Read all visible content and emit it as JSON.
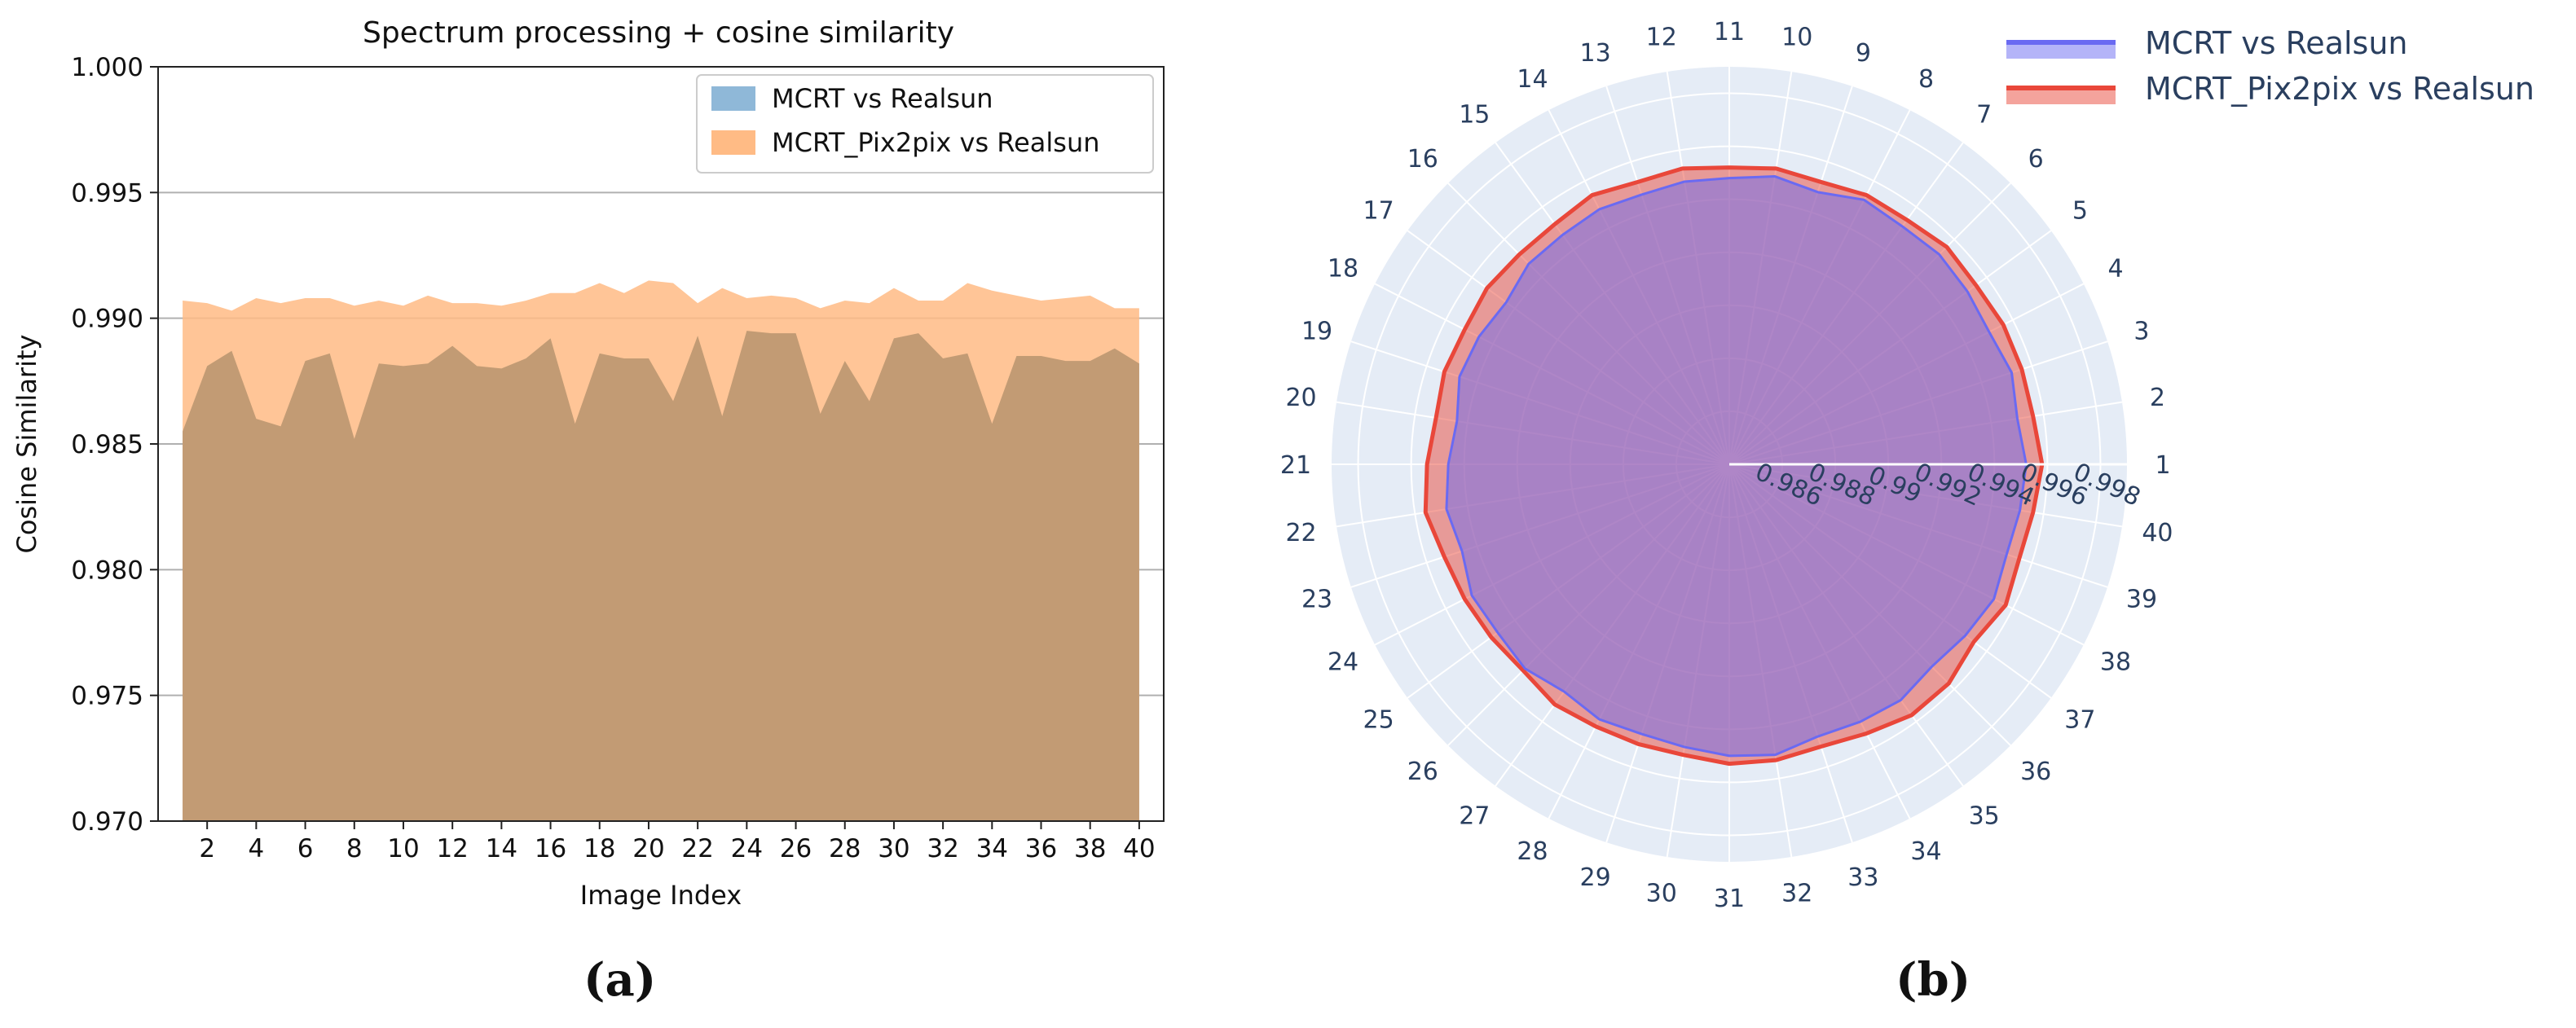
{
  "chart_data": [
    {
      "type": "area",
      "panel_label": "(a)",
      "title": "Spectrum processing + cosine similarity",
      "xlabel": "Image Index",
      "ylabel": "Cosine Similarity",
      "ylim": [
        0.97,
        1.0
      ],
      "xlim": [
        1,
        40
      ],
      "yticks": [
        "0.970",
        "0.975",
        "0.980",
        "0.985",
        "0.990",
        "0.995",
        "1.000"
      ],
      "xticks": [
        "2",
        "4",
        "6",
        "8",
        "10",
        "12",
        "14",
        "16",
        "18",
        "20",
        "22",
        "24",
        "26",
        "28",
        "30",
        "32",
        "34",
        "36",
        "38",
        "40"
      ],
      "grid": "horizontal",
      "legend_position": "top-right",
      "x": [
        1,
        2,
        3,
        4,
        5,
        6,
        7,
        8,
        9,
        10,
        11,
        12,
        13,
        14,
        15,
        16,
        17,
        18,
        19,
        20,
        21,
        22,
        23,
        24,
        25,
        26,
        27,
        28,
        29,
        30,
        31,
        32,
        33,
        34,
        35,
        36,
        37,
        38,
        39,
        40
      ],
      "series": [
        {
          "name": "MCRT vs Realsun",
          "color": "#8fb8d8",
          "values": [
            0.9855,
            0.9881,
            0.9887,
            0.986,
            0.9857,
            0.9883,
            0.9886,
            0.9852,
            0.9882,
            0.9881,
            0.9882,
            0.9889,
            0.9881,
            0.988,
            0.9884,
            0.9892,
            0.9858,
            0.9886,
            0.9884,
            0.9884,
            0.9867,
            0.9893,
            0.9861,
            0.9895,
            0.9894,
            0.9894,
            0.9862,
            0.9883,
            0.9867,
            0.9892,
            0.9894,
            0.9884,
            0.9886,
            0.9858,
            0.9885,
            0.9885,
            0.9883,
            0.9883,
            0.9888,
            0.9882
          ]
        },
        {
          "name": "MCRT_Pix2pix vs Realsun",
          "color": "#ffbb85",
          "values": [
            0.9907,
            0.9906,
            0.9903,
            0.9908,
            0.9906,
            0.9908,
            0.9908,
            0.9905,
            0.9907,
            0.9905,
            0.9909,
            0.9906,
            0.9906,
            0.9905,
            0.9907,
            0.991,
            0.991,
            0.9914,
            0.991,
            0.9915,
            0.9914,
            0.9906,
            0.9912,
            0.9908,
            0.9909,
            0.9908,
            0.9904,
            0.9907,
            0.9906,
            0.9912,
            0.9907,
            0.9907,
            0.9914,
            0.9911,
            0.9909,
            0.9907,
            0.9908,
            0.9909,
            0.9904,
            0.9904
          ]
        }
      ]
    },
    {
      "type": "radar",
      "panel_label": "(b)",
      "radial_range": [
        0.984,
        0.999
      ],
      "radial_ticks": [
        "0.986",
        "0.988",
        "0.99",
        "0.992",
        "0.994",
        "0.996",
        "0.998"
      ],
      "angular_labels": [
        "1",
        "2",
        "3",
        "4",
        "5",
        "6",
        "7",
        "8",
        "9",
        "10",
        "11",
        "12",
        "13",
        "14",
        "15",
        "16",
        "17",
        "18",
        "19",
        "20",
        "21",
        "22",
        "23",
        "24",
        "25",
        "26",
        "27",
        "28",
        "29",
        "30",
        "31",
        "32",
        "33",
        "34",
        "35",
        "36",
        "37",
        "38",
        "39",
        "40"
      ],
      "legend_position": "top-right",
      "series": [
        {
          "name": "MCRT vs Realsun",
          "color": "#6a6af2",
          "values": [
            0.9952,
            0.995,
            0.9952,
            0.995,
            0.9951,
            0.9952,
            0.9951,
            0.9952,
            0.9948,
            0.995,
            0.9948,
            0.9948,
            0.9947,
            0.9948,
            0.9947,
            0.9947,
            0.9944,
            0.9946,
            0.9947,
            0.9944,
            0.9946,
            0.9948,
            0.9946,
            0.9949,
            0.9948,
            0.9949,
            0.9946,
            0.9948,
            0.9947,
            0.9948,
            0.995,
            0.9951,
            0.9948,
            0.9949,
            0.995,
            0.9948,
            0.995,
            0.9952,
            0.995,
            0.9951
          ]
        },
        {
          "name": "MCRT_Pix2pix vs Realsun",
          "color": "#e9473a",
          "values": [
            0.9958,
            0.9956,
            0.9956,
            0.9956,
            0.9955,
            0.9956,
            0.9954,
            0.9954,
            0.9952,
            0.9953,
            0.9952,
            0.9953,
            0.9952,
            0.9954,
            0.9952,
            0.9952,
            0.9953,
            0.9952,
            0.9953,
            0.9952,
            0.9954,
            0.9956,
            0.9953,
            0.9952,
            0.9951,
            0.995,
            0.9952,
            0.9951,
            0.9951,
            0.9951,
            0.9953,
            0.9953,
            0.9952,
            0.9954,
            0.9957,
            0.9957,
            0.9954,
            0.9957,
            0.9955,
            0.9956
          ]
        }
      ]
    }
  ]
}
